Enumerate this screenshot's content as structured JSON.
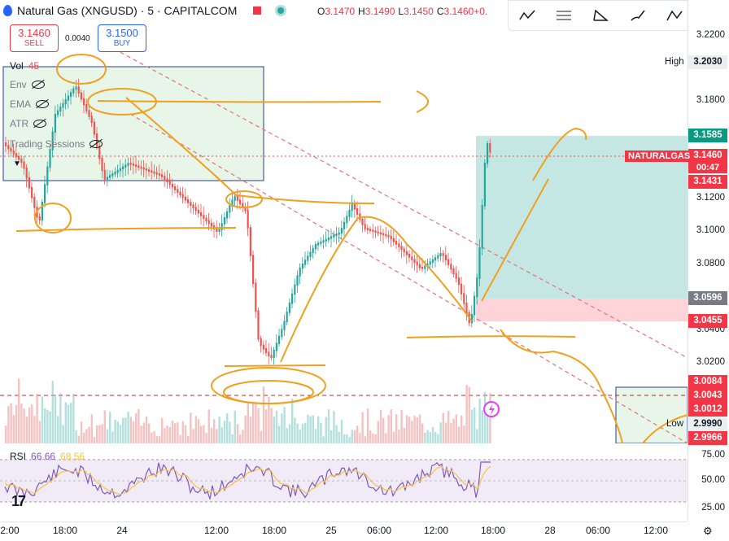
{
  "header": {
    "symbol_title": "Natural Gas (XNGUSD) · 5 · CAPITALCOM",
    "ohlc": {
      "o_label": "O",
      "o": "3.1470",
      "h_label": "H",
      "h": "3.1490",
      "l_label": "L",
      "l": "3.1450",
      "c_label": "C",
      "c": "3.1460",
      "chg": "+0."
    }
  },
  "trade": {
    "sell_price": "3.1460",
    "sell_label": "SELL",
    "spread": "0.0040",
    "buy_price": "3.1500",
    "buy_label": "BUY"
  },
  "legend": {
    "vol_label": "Vol",
    "vol_value": "45",
    "items": [
      "Env",
      "EMA",
      "ATR",
      "Trading Sessions"
    ]
  },
  "rsi": {
    "label": "RSI",
    "value1": "66.66",
    "value2": "68.56"
  },
  "price_axis": {
    "ticks": [
      "3.2200",
      "3.1800",
      "3.1200",
      "3.1000",
      "3.0800",
      "3.0400",
      "3.0200"
    ],
    "high_label": "High",
    "high_value": "3.2030",
    "low_label": "Low",
    "low_value": "2.9990",
    "target_box": "3.1585",
    "symbol_tag": "NATURALGAS",
    "current_price": "3.1460",
    "countdown": "00:47",
    "bid_line": "3.1431",
    "entry_box": "3.0596",
    "stop_box": "3.0455",
    "level_1": "3.0084",
    "level_2": "3.0043",
    "level_3": "3.0012",
    "level_4": "2.9966"
  },
  "rsi_axis": {
    "ticks": [
      "75.00",
      "50.00",
      "25.00"
    ]
  },
  "time_axis": {
    "ticks": [
      "2:00",
      "18:00",
      "24",
      "12:00",
      "18:00",
      "25",
      "06:00",
      "12:00",
      "18:00",
      "28",
      "06:00",
      "12:00"
    ]
  },
  "toolbar": {
    "icons": [
      "trend-tools-icon",
      "fib-icon",
      "patterns-icon",
      "brush-icon",
      "text-annotation-icon",
      "fullscreen-icon"
    ]
  },
  "colors": {
    "up": "#26a69a",
    "down": "#ef5350",
    "drawing": "#f0a020",
    "target_zone": "#b2dfdb",
    "stop_zone": "#ffcdd2",
    "accent": "#2962ff"
  }
}
